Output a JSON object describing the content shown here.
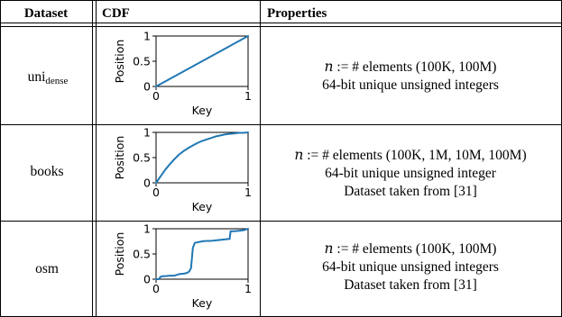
{
  "table": {
    "headers": [
      "Dataset",
      "CDF",
      "Properties"
    ],
    "rows": [
      {
        "dataset": "uni",
        "dataset_sub": "dense",
        "properties": [
          "𝑛 := # elements (100K, 100M)",
          "64-bit unique unsigned integers"
        ]
      },
      {
        "dataset": "books",
        "dataset_sub": "",
        "properties": [
          "𝑛 := # elements (100K, 1M, 10M, 100M)",
          "64-bit unique unsigned integer",
          "Dataset taken from [31]"
        ]
      },
      {
        "dataset": "osm",
        "dataset_sub": "",
        "properties": [
          "𝑛 := # elements (100K, 100M)",
          "64-bit unique unsigned integers",
          "Dataset taken from [31]"
        ]
      }
    ]
  },
  "chart_data": [
    {
      "type": "line",
      "xlabel": "Key",
      "ylabel": "Position",
      "xticks": [
        "0",
        "1"
      ],
      "yticks": [
        "0",
        "0.5",
        "1"
      ],
      "xlim": [
        0,
        1
      ],
      "ylim": [
        0,
        1
      ],
      "series": [
        {
          "x": [
            0,
            1
          ],
          "y": [
            0,
            1
          ],
          "color": "#1f77b4"
        }
      ]
    },
    {
      "type": "line",
      "xlabel": "Key",
      "ylabel": "Position",
      "xticks": [
        "0",
        "1"
      ],
      "yticks": [
        "0",
        "0.5",
        "1"
      ],
      "xlim": [
        0,
        1
      ],
      "ylim": [
        0,
        1
      ],
      "series": [
        {
          "x": [
            0,
            0.05,
            0.1,
            0.15,
            0.2,
            0.25,
            0.3,
            0.35,
            0.4,
            0.45,
            0.5,
            0.55,
            0.6,
            0.65,
            0.7,
            0.75,
            0.8,
            0.85,
            0.9,
            0.95,
            1.0
          ],
          "y": [
            0.0,
            0.13,
            0.26,
            0.37,
            0.47,
            0.56,
            0.63,
            0.69,
            0.74,
            0.79,
            0.83,
            0.86,
            0.89,
            0.92,
            0.94,
            0.96,
            0.97,
            0.98,
            0.99,
            0.99,
            1.0
          ],
          "color": "#1f77b4"
        }
      ]
    },
    {
      "type": "line",
      "xlabel": "Key",
      "ylabel": "Position",
      "xticks": [
        "0",
        "1"
      ],
      "yticks": [
        "0",
        "0.5",
        "1"
      ],
      "xlim": [
        0,
        1
      ],
      "ylim": [
        0,
        1
      ],
      "series": [
        {
          "x": [
            0,
            0.03,
            0.05,
            0.08,
            0.1,
            0.15,
            0.2,
            0.25,
            0.3,
            0.33,
            0.36,
            0.38,
            0.4,
            0.42,
            0.5,
            0.55,
            0.6,
            0.65,
            0.7,
            0.75,
            0.8,
            0.81,
            0.85,
            0.9,
            0.95,
            1.0
          ],
          "y": [
            0.0,
            0.0,
            0.05,
            0.06,
            0.06,
            0.07,
            0.07,
            0.1,
            0.11,
            0.12,
            0.15,
            0.22,
            0.62,
            0.72,
            0.75,
            0.76,
            0.76,
            0.77,
            0.78,
            0.79,
            0.8,
            0.95,
            0.95,
            0.96,
            0.97,
            1.0
          ],
          "color": "#1f77b4"
        }
      ]
    }
  ]
}
